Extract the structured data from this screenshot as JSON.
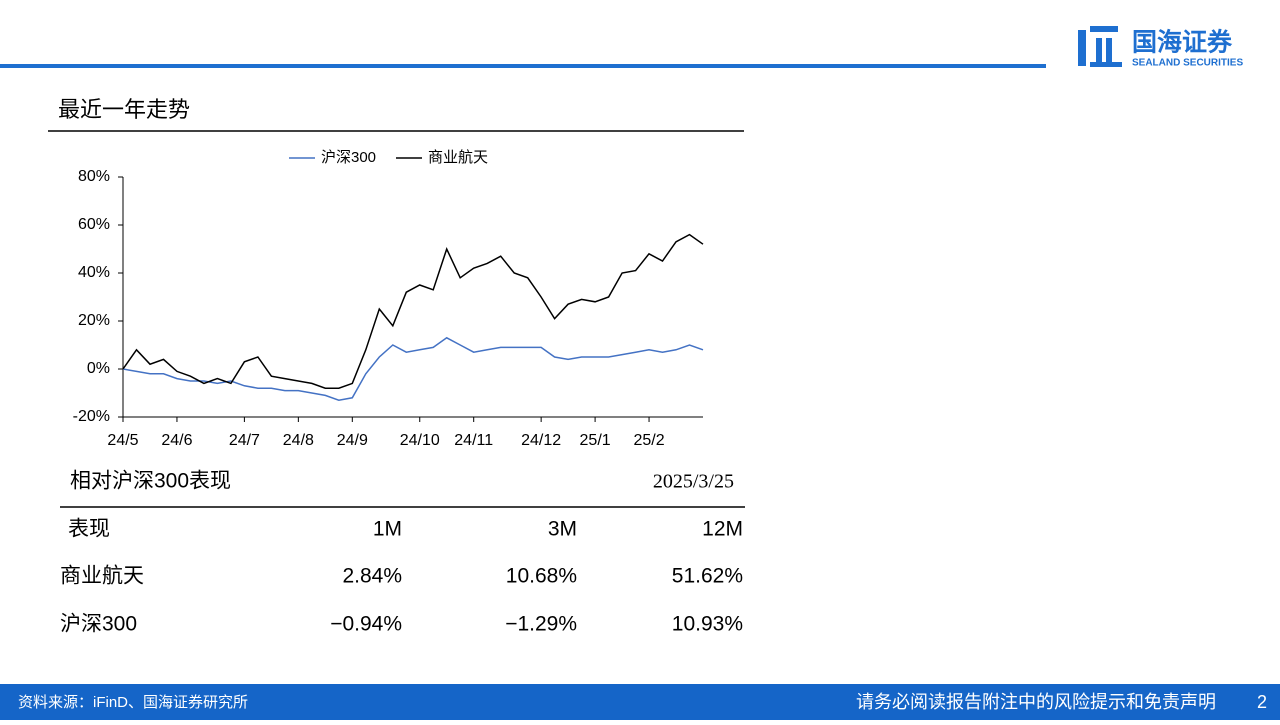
{
  "header": {
    "logo_cn": "国海证券",
    "logo_en": "SEALAND SECURITIES"
  },
  "section_title": "最近一年走势",
  "chart_data": {
    "type": "line",
    "categories": [
      "24/5",
      null,
      null,
      null,
      "24/6",
      null,
      null,
      null,
      null,
      "24/7",
      null,
      null,
      null,
      "24/8",
      null,
      null,
      null,
      "24/9",
      null,
      null,
      null,
      null,
      "24/10",
      null,
      null,
      null,
      "24/11",
      null,
      null,
      null,
      null,
      "24/12",
      null,
      null,
      null,
      "25/1",
      null,
      null,
      null,
      "25/2",
      null,
      null,
      null,
      null
    ],
    "series": [
      {
        "name": "沪深300",
        "color": "#4472c4",
        "values": [
          0,
          -1,
          -2,
          -2,
          -4,
          -5,
          -5,
          -6,
          -5,
          -7,
          -8,
          -8,
          -9,
          -9,
          -10,
          -11,
          -13,
          -12,
          -2,
          5,
          10,
          7,
          8,
          9,
          13,
          10,
          7,
          8,
          9,
          9,
          9,
          9,
          5,
          4,
          5,
          5,
          5,
          6,
          7,
          8,
          7,
          8,
          10,
          8
        ]
      },
      {
        "name": "商业航天",
        "color": "#000000",
        "values": [
          0,
          8,
          2,
          4,
          -1,
          -3,
          -6,
          -4,
          -6,
          3,
          5,
          -3,
          -4,
          -5,
          -6,
          -8,
          -8,
          -6,
          8,
          25,
          18,
          32,
          35,
          33,
          50,
          38,
          42,
          44,
          47,
          40,
          38,
          30,
          21,
          27,
          29,
          28,
          30,
          40,
          41,
          48,
          45,
          53,
          56,
          52
        ]
      }
    ],
    "ylim": [
      -20,
      80
    ],
    "yticks": [
      {
        "value": -20,
        "label": "-20%"
      },
      {
        "value": 0,
        "label": "0%"
      },
      {
        "value": 20,
        "label": "20%"
      },
      {
        "value": 40,
        "label": "40%"
      },
      {
        "value": 60,
        "label": "60%"
      },
      {
        "value": 80,
        "label": "80%"
      }
    ],
    "legend": "top"
  },
  "table": {
    "title": "相对沪深300表现",
    "date": "2025/3/25",
    "header": [
      "表现",
      "1M",
      "3M",
      "12M"
    ],
    "rows": [
      [
        "商业航天",
        "2.84%",
        "10.68%",
        "51.62%"
      ],
      [
        "沪深300",
        "−0.94%",
        "−1.29%",
        "10.93%"
      ]
    ]
  },
  "footer": {
    "source": "资料来源：iFinD、国海证券研究所",
    "disclaimer": "请务必阅读报告附注中的风险提示和免责声明",
    "page": "2"
  }
}
